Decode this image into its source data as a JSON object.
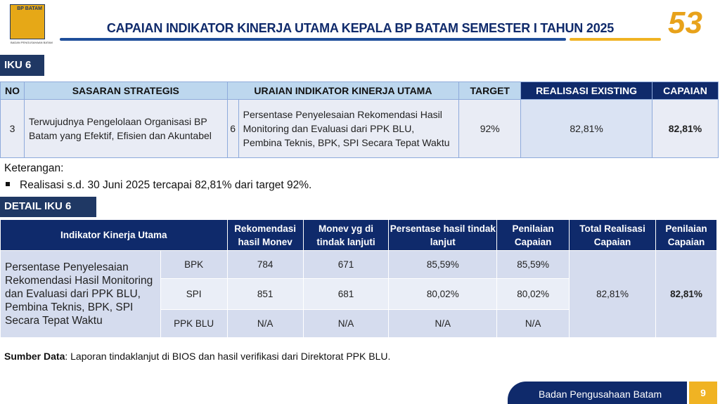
{
  "header": {
    "logo_text": "BP BATAM",
    "logo_sub": "BADAN PENGUSAHAAN BATAM",
    "title": "CAPAIAN INDIKATOR KINERJA UTAMA KEPALA BP BATAM SEMESTER I TAHUN 2025",
    "anniversary": "53"
  },
  "iku": {
    "label": "IKU 6",
    "headers": {
      "no": "NO",
      "sasaran": "SASARAN STRATEGIS",
      "uraian": "URAIAN INDIKATOR KINERJA UTAMA",
      "target": "TARGET",
      "realisasi": "REALISASI EXISTING",
      "capaian": "CAPAIAN"
    },
    "row": {
      "no": "3",
      "sasaran": "Terwujudnya Pengelolaan Organisasi BP Batam yang Efektif, Efisien dan Akuntabel",
      "iku_no": "6",
      "uraian": "Persentase Penyelesaian Rekomendasi Hasil Monitoring dan Evaluasi dari PPK BLU, Pembina Teknis, BPK, SPI Secara Tepat Waktu",
      "target": "92%",
      "realisasi": "82,81%",
      "capaian": "82,81%"
    }
  },
  "keterangan": {
    "label": "Keterangan:",
    "bullet": "Realisasi s.d. 30 Juni 2025 tercapai  82,81% dari target 92%."
  },
  "detail": {
    "label": "DETAIL IKU 6",
    "headers": [
      "Indikator Kinerja Utama",
      "Rekomendasi hasil Monev",
      "Monev yg di tindak lanjuti",
      "Persentase hasil tindak lanjut",
      "Penilaian Capaian",
      "Total Realisasi Capaian",
      "Penilaian Capaian"
    ],
    "indicator": "Persentase Penyelesaian Rekomendasi Hasil Monitoring dan Evaluasi dari PPK BLU, Pembina Teknis, BPK, SPI Secara Tepat Waktu",
    "rows": [
      {
        "source": "BPK",
        "rekomendasi": "784",
        "monev": "671",
        "persentase": "85,59%",
        "penilaian": "85,59%"
      },
      {
        "source": "SPI",
        "rekomendasi": "851",
        "monev": "681",
        "persentase": "80,02%",
        "penilaian": "80,02%"
      },
      {
        "source": "PPK BLU",
        "rekomendasi": "N/A",
        "monev": "N/A",
        "persentase": "N/A",
        "penilaian": "N/A"
      }
    ],
    "total": "82,81%",
    "penilaian_total": "82,81%"
  },
  "sumber": {
    "label": "Sumber Data",
    "text": ": Laporan tindaklanjut di BIOS dan hasil verifikasi dari Direktorat PPK BLU."
  },
  "footer": {
    "org": "Badan Pengusahaan Batam",
    "page": "9"
  }
}
